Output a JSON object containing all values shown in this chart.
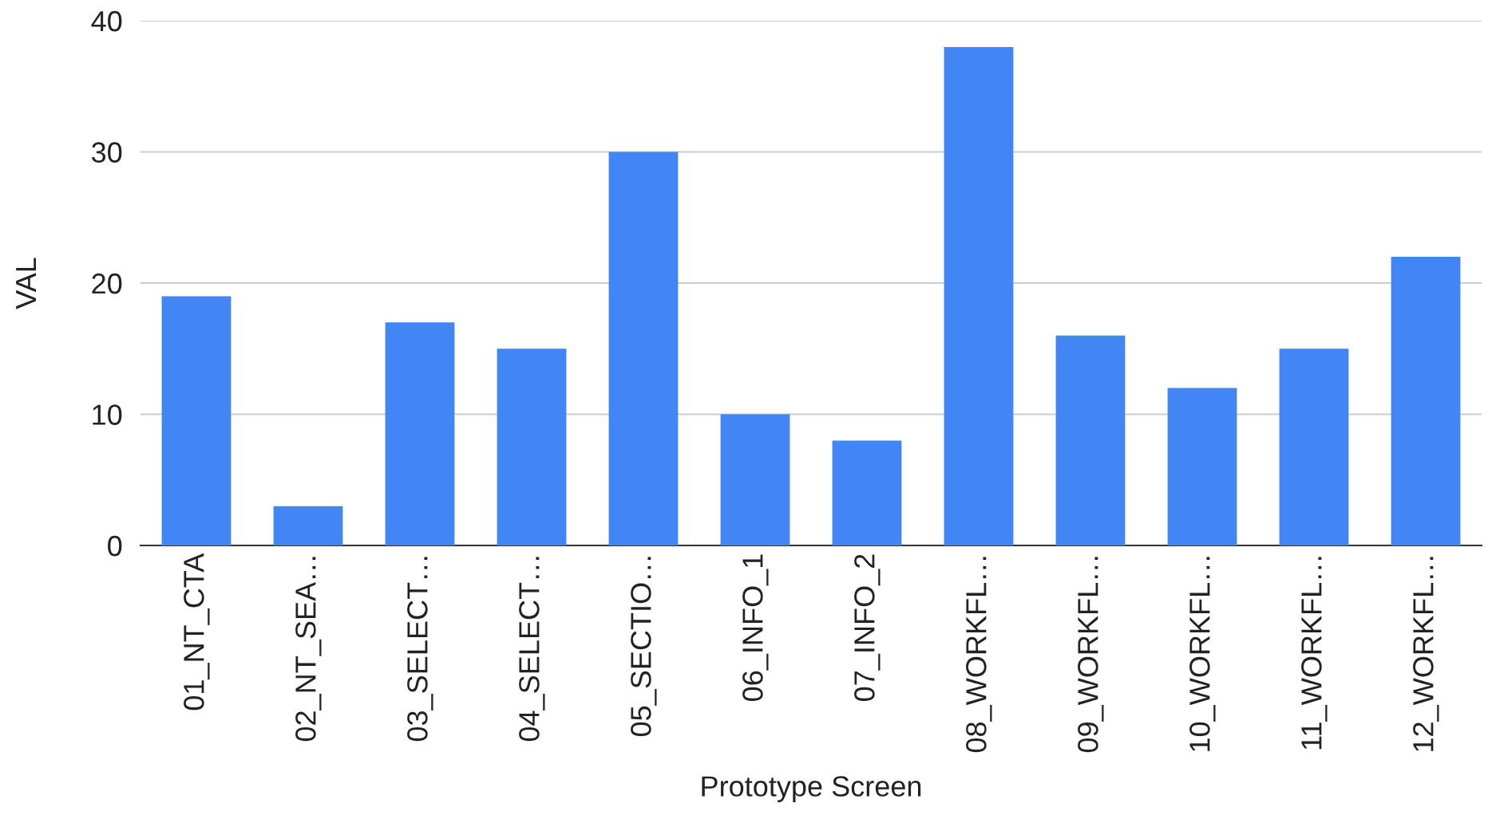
{
  "chart_data": {
    "type": "bar",
    "xlabel": "Prototype Screen",
    "ylabel": "VAL",
    "categories": [
      "01_NT_CTA",
      "02_NT_SEA…",
      "03_SELECT…",
      "04_SELECT…",
      "05_SECTIO…",
      "06_INFO_1",
      "07_INFO_2",
      "08_WORKFL…",
      "09_WORKFL…",
      "10_WORKFL…",
      "11_WORKFL…",
      "12_WORKFL…"
    ],
    "values": [
      19,
      3,
      17,
      15,
      30,
      10,
      8,
      38,
      16,
      12,
      15,
      22
    ],
    "color": "#4285f4",
    "ylim": [
      0,
      40
    ],
    "yticks": [
      0,
      10,
      20,
      30,
      40
    ],
    "grid": "y"
  }
}
